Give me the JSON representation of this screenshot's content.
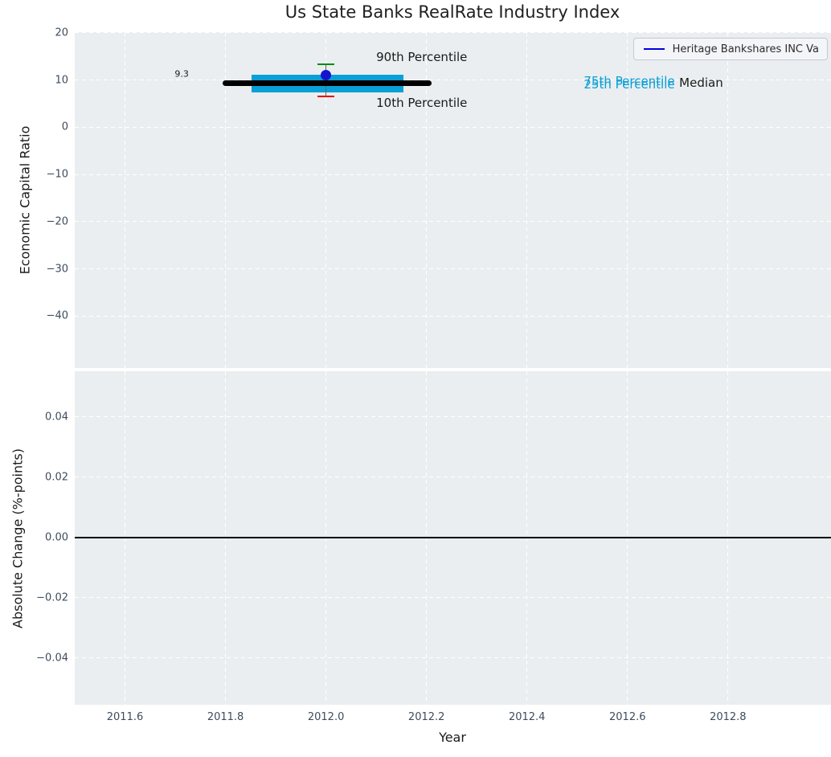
{
  "title": "Us State Banks RealRate Industry Index",
  "legend": {
    "label": "Heritage Bankshares INC Va"
  },
  "colors": {
    "plot_background": "#eaeef0",
    "grid": "#ffffff",
    "tick_label": "#3d4c5c",
    "text": "#1a1a1a",
    "median_line": "#000000",
    "iqr_box": "#0a9fd6",
    "p90_cap": "#008c00",
    "p10_cap": "#e80000",
    "company_dot": "#1414cd",
    "whisker": "#666666",
    "legend_line": "#0000e0",
    "zero_line": "#000000"
  },
  "chart_data": [
    {
      "type": "box-timeseries",
      "title": "Us State Banks RealRate Industry Index",
      "ylabel": "Economic Capital Ratio",
      "xlabel": "",
      "grid": "dashed",
      "legend_position": "upper right",
      "ylim": [
        -51.0,
        20.15
      ],
      "xlim": [
        2011.5,
        2013.005
      ],
      "ytick_values": [
        20,
        10,
        0,
        -10,
        -20,
        -30,
        -40
      ],
      "ytick_labels": [
        "20",
        "10",
        "0",
        "−10",
        "−20",
        "−30",
        "−40"
      ],
      "xtick_values": [
        2011.6,
        2011.8,
        2012.0,
        2012.2,
        2012.4,
        2012.6,
        2012.8
      ],
      "series": [
        {
          "name": "Heritage Bankshares INC Va",
          "points": [
            {
              "x": 2012.0,
              "value": 11.1,
              "median": 9.3,
              "median_label": "9.3",
              "p90": 13.3,
              "p75": 11.1,
              "p25": 7.4,
              "p10": 6.5,
              "median_span": [
                2011.794,
                2012.21
              ],
              "iqr_span": [
                2011.852,
                2012.154
              ],
              "cap_halfwidth": 0.017
            }
          ]
        }
      ],
      "annotations": [
        {
          "text": "9.3",
          "x": 2011.713,
          "y": 11.3,
          "align": "center",
          "size": 11,
          "color": "#1a1a1a"
        },
        {
          "text": "90th Percentile",
          "x": 2012.1,
          "y": 14.9,
          "align": "left",
          "size": 15,
          "color": "#1a1a1a"
        },
        {
          "text": "10th Percentile",
          "x": 2012.1,
          "y": 5.2,
          "align": "left",
          "size": 15,
          "color": "#1a1a1a"
        },
        {
          "text": "75th Percentile",
          "x": 2012.513,
          "y": 9.8,
          "align": "left",
          "size": 15,
          "color": "#0a9fd6"
        },
        {
          "text": "25th Percentile",
          "x": 2012.513,
          "y": 9.1,
          "align": "left",
          "size": 15,
          "color": "#0a9fd6"
        },
        {
          "text": "Median",
          "x": 2012.703,
          "y": 9.4,
          "align": "left",
          "size": 15,
          "color": "#1a1a1a"
        }
      ]
    },
    {
      "type": "line",
      "ylabel": "Absolute Change (%-points)",
      "xlabel": "Year",
      "grid": "dashed",
      "ylim": [
        -0.0556,
        0.0551
      ],
      "xlim": [
        2011.5,
        2013.005
      ],
      "ytick_values": [
        0.04,
        0.02,
        0.0,
        -0.02,
        -0.04
      ],
      "ytick_labels": [
        "0.04",
        "0.02",
        "0.00",
        "−0.02",
        "−0.04"
      ],
      "xtick_values": [
        2011.6,
        2011.8,
        2012.0,
        2012.2,
        2012.4,
        2012.6,
        2012.8
      ],
      "xtick_labels": [
        "2011.6",
        "2011.8",
        "2012.0",
        "2012.2",
        "2012.4",
        "2012.6",
        "2012.8"
      ],
      "zero_line": 0.0
    }
  ]
}
